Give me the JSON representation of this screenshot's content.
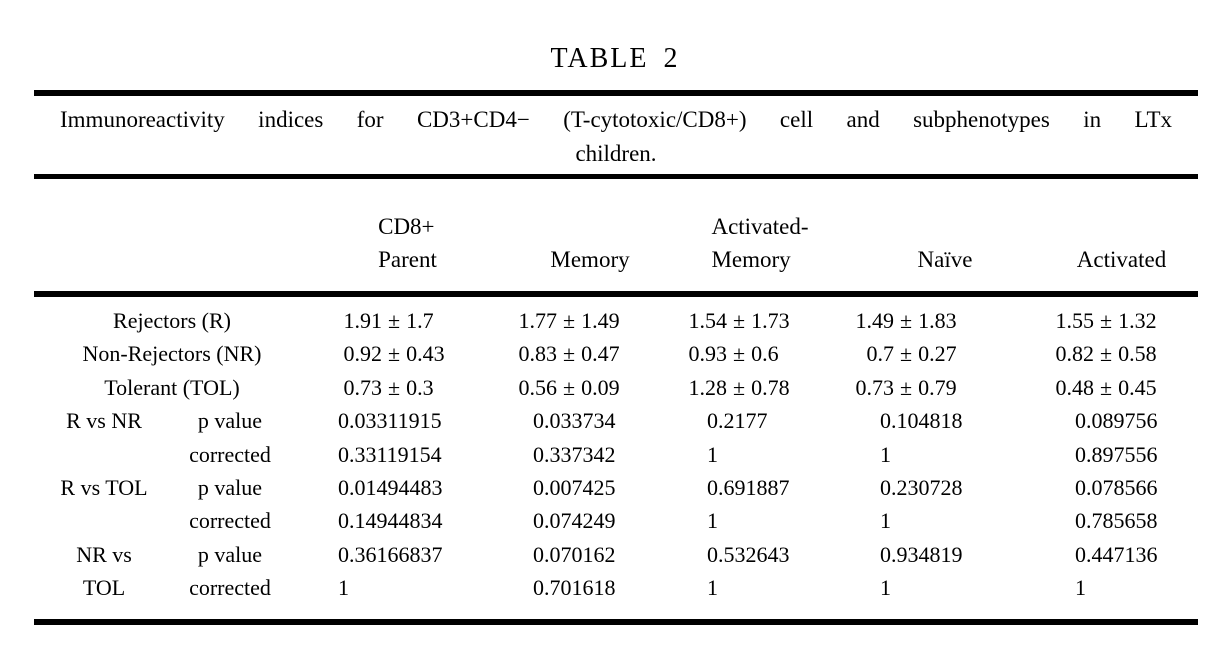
{
  "title": "TABLE 2",
  "caption": {
    "line1": "Immunoreactivity indices for CD3+CD4− (T-cytotoxic/CD8+) cell and subphenotypes in LTx",
    "line2": "children."
  },
  "table": {
    "pm": "±",
    "columns": [
      {
        "line1": "CD8+",
        "line2": "Parent"
      },
      {
        "line2": "Memory"
      },
      {
        "line1": "Activated-",
        "line2": "Memory"
      },
      {
        "line2": "Naïve"
      },
      {
        "line2": "Activated"
      }
    ],
    "rows": [
      {
        "type": "mean_sd",
        "label": "Rejectors (R)",
        "values": [
          {
            "mean": "1.91",
            "sd": "1.7"
          },
          {
            "mean": "1.77",
            "sd": "1.49"
          },
          {
            "mean": "1.54",
            "sd": "1.73"
          },
          {
            "mean": "1.49",
            "sd": "1.83"
          },
          {
            "mean": "1.55",
            "sd": "1.32"
          }
        ]
      },
      {
        "type": "mean_sd",
        "label": "Non-Rejectors (NR)",
        "values": [
          {
            "mean": "0.92",
            "sd": "0.43"
          },
          {
            "mean": "0.83",
            "sd": "0.47"
          },
          {
            "mean": "0.93",
            "sd": "0.6"
          },
          {
            "mean": "0.7",
            "sd": "0.27"
          },
          {
            "mean": "0.82",
            "sd": "0.58"
          }
        ]
      },
      {
        "type": "mean_sd",
        "label": "Tolerant (TOL)",
        "values": [
          {
            "mean": "0.73",
            "sd": "0.3"
          },
          {
            "mean": "0.56",
            "sd": "0.09"
          },
          {
            "mean": "1.28",
            "sd": "0.78"
          },
          {
            "mean": "0.73",
            "sd": "0.79"
          },
          {
            "mean": "0.48",
            "sd": "0.45"
          }
        ]
      },
      {
        "type": "pvalue",
        "comparison": "R vs NR",
        "stat": "p value",
        "values": [
          "0.03311915",
          "0.033734",
          "0.2177",
          "0.104818",
          "0.089756"
        ]
      },
      {
        "type": "pvalue",
        "comparison": "",
        "stat": "corrected",
        "values": [
          "0.33119154",
          "0.337342",
          "1",
          "1",
          "0.897556"
        ]
      },
      {
        "type": "pvalue",
        "comparison": "R vs TOL",
        "stat": "p value",
        "values": [
          "0.01494483",
          "0.007425",
          "0.691887",
          "0.230728",
          "0.078566"
        ]
      },
      {
        "type": "pvalue",
        "comparison": "",
        "stat": "corrected",
        "values": [
          "0.14944834",
          "0.074249",
          "1",
          "1",
          "0.785658"
        ]
      },
      {
        "type": "pvalue",
        "comparison": "NR vs",
        "stat": "p value",
        "values": [
          "0.36166837",
          "0.070162",
          "0.532643",
          "0.934819",
          "0.447136"
        ]
      },
      {
        "type": "pvalue",
        "comparison": "TOL",
        "stat": "corrected",
        "values": [
          "1",
          "0.701618",
          "1",
          "1",
          "1"
        ]
      }
    ]
  }
}
